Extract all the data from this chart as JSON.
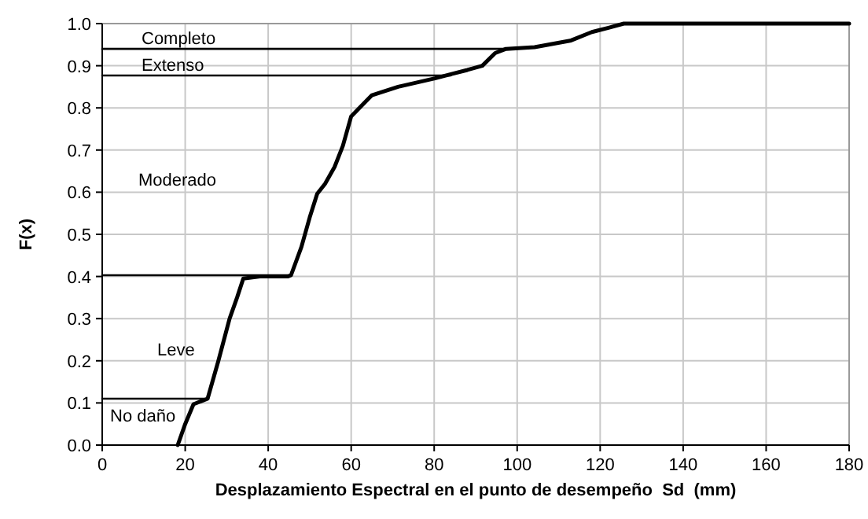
{
  "chart_data": {
    "type": "line",
    "xlabel": "Desplazamiento Espectral en el punto de desempeño  Sd  (mm)",
    "ylabel": "F(x)",
    "xlim": [
      0,
      180
    ],
    "xticks": [
      0,
      20,
      40,
      60,
      80,
      100,
      120,
      140,
      160,
      180
    ],
    "ylim": [
      0,
      1
    ],
    "yticks": [
      {
        "value": 0,
        "label": "0.0"
      },
      {
        "value": 0.1,
        "label": "0.1"
      },
      {
        "value": 0.2,
        "label": "0.2"
      },
      {
        "value": 0.3,
        "label": "0.3"
      },
      {
        "value": 0.4,
        "label": "0.4"
      },
      {
        "value": 0.5,
        "label": "0.5"
      },
      {
        "value": 0.6,
        "label": "0.6"
      },
      {
        "value": 0.7,
        "label": "0.7"
      },
      {
        "value": 0.8,
        "label": "0.8"
      },
      {
        "value": 0.9,
        "label": "0.9"
      },
      {
        "value": 1,
        "label": "1.0"
      }
    ],
    "grid": true,
    "marker": "none",
    "line_style": "solid",
    "series": [
      {
        "color": "#000000",
        "x": [
          18.2,
          20,
          22,
          25.4,
          28,
          30.7,
          32.5,
          34,
          38,
          44.7,
          45.5,
          48,
          50,
          51.8,
          53.7,
          56,
          58,
          60,
          65,
          71.3,
          80.2,
          84,
          88,
          91.6,
          94.7,
          97.3,
          104.2,
          113,
          118,
          122,
          125.7,
          180
        ],
        "values": [
          0,
          0.05,
          0.097,
          0.11,
          0.2,
          0.3,
          0.35,
          0.395,
          0.4,
          0.4,
          0.403,
          0.47,
          0.54,
          0.596,
          0.62,
          0.66,
          0.71,
          0.78,
          0.83,
          0.85,
          0.87,
          0.88,
          0.89,
          0.9,
          0.93,
          0.94,
          0.944,
          0.96,
          0.98,
          0.99,
          1,
          1
        ]
      },
      {
        "color": "#000000",
        "x": [
          0,
          97
        ],
        "values": [
          0.94,
          0.94
        ]
      },
      {
        "color": "#000000",
        "x": [
          0,
          84
        ],
        "values": [
          0.877,
          0.877
        ]
      },
      {
        "color": "#000000",
        "x": [
          0,
          45
        ],
        "values": [
          0.403,
          0.403
        ]
      },
      {
        "color": "#000000",
        "x": [
          0,
          25.4
        ],
        "values": [
          0.11,
          0.11
        ]
      }
    ],
    "annotations": [
      "Completo",
      "Extenso",
      "Moderado",
      "Leve",
      "No daño"
    ]
  }
}
